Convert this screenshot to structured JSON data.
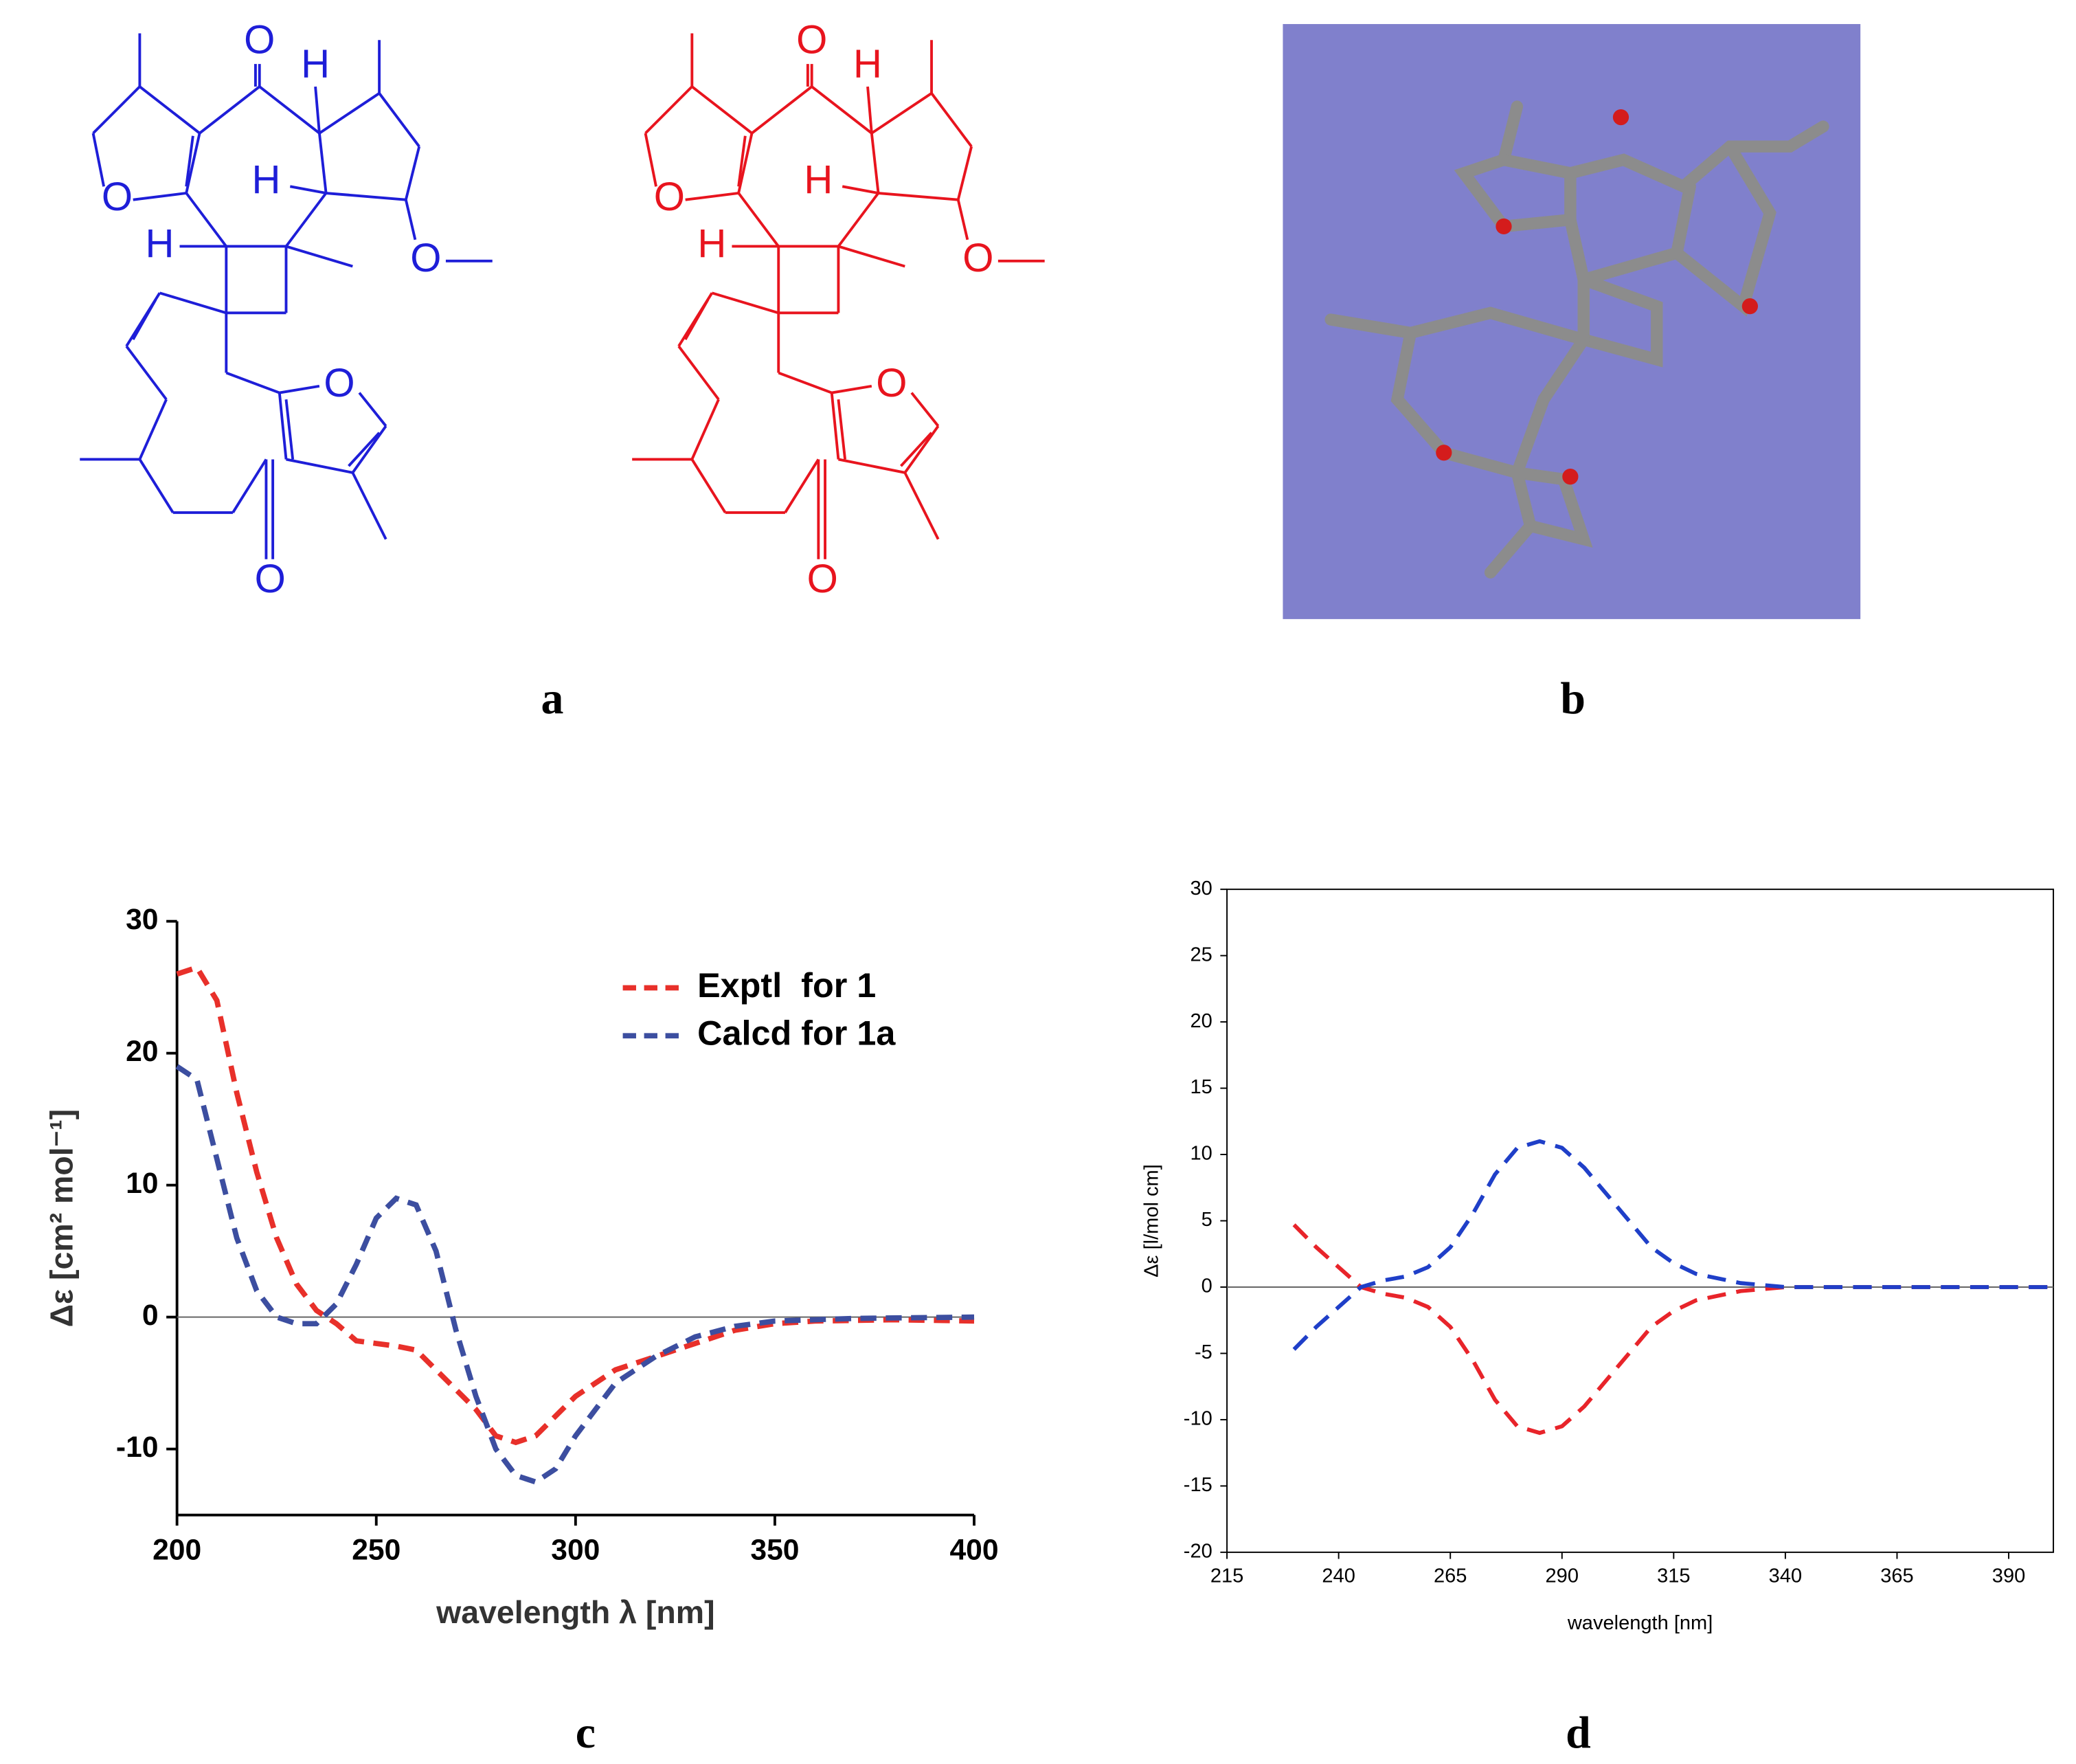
{
  "panels": [
    "a",
    "b",
    "c",
    "d"
  ],
  "structures": [
    {
      "color": "#1e1ed8",
      "atoms": [
        "O",
        "H",
        "H",
        "O",
        "H",
        "O",
        "O",
        "O"
      ]
    },
    {
      "color": "#e8141e",
      "atoms": [
        "O",
        "H",
        "H",
        "O",
        "H",
        "O",
        "O",
        "O"
      ]
    }
  ],
  "chart_data": [
    {
      "type": "line",
      "ylabel": "Δε [cm² mol⁻¹]",
      "xlabel": "wavelength λ [nm]",
      "xlim": [
        200,
        400
      ],
      "xticks": [
        200,
        250,
        300,
        350,
        400
      ],
      "ylim": [
        -15,
        30
      ],
      "yticks": [
        -10,
        0,
        10,
        20,
        30
      ],
      "zero_line": true,
      "legend": "upper right",
      "series": [
        {
          "name": "Exptl  for 1",
          "color": "#e8302a",
          "x": [
            200,
            205,
            210,
            215,
            220,
            225,
            230,
            235,
            240,
            245,
            250,
            255,
            260,
            265,
            270,
            275,
            280,
            285,
            290,
            295,
            300,
            305,
            310,
            315,
            320,
            330,
            340,
            350,
            360,
            380,
            400
          ],
          "values": [
            26,
            26.5,
            24,
            17,
            11,
            6,
            2.5,
            0.5,
            -0.5,
            -1.8,
            -2,
            -2.2,
            -2.5,
            -4,
            -5.5,
            -7,
            -9,
            -9.5,
            -9,
            -7.5,
            -6,
            -5,
            -4,
            -3.5,
            -3,
            -2,
            -1,
            -0.5,
            -0.3,
            -0.2,
            -0.3
          ]
        },
        {
          "name": "Calcd for 1a",
          "color": "#3c4ea0",
          "x": [
            200,
            205,
            210,
            215,
            220,
            225,
            230,
            235,
            240,
            245,
            250,
            255,
            260,
            265,
            270,
            275,
            280,
            285,
            290,
            295,
            300,
            305,
            310,
            320,
            330,
            340,
            350,
            370,
            400
          ],
          "values": [
            19,
            18,
            12,
            6,
            2,
            0,
            -0.5,
            -0.5,
            1,
            4,
            7.5,
            9,
            8.5,
            5,
            -1,
            -6,
            -10,
            -12,
            -12.5,
            -11.5,
            -9,
            -7,
            -5,
            -3,
            -1.5,
            -0.7,
            -0.3,
            -0.1,
            0
          ]
        }
      ]
    },
    {
      "type": "line",
      "ylabel": "Δε [l/mol cm]",
      "xlabel": "wavelength  [nm]",
      "xlim": [
        215,
        400
      ],
      "xticks": [
        215,
        240,
        265,
        290,
        315,
        340,
        365,
        390
      ],
      "ylim": [
        -20,
        30
      ],
      "yticks": [
        -20,
        -15,
        -10,
        -5,
        0,
        5,
        10,
        15,
        20,
        25,
        30
      ],
      "zero_line": true,
      "series": [
        {
          "color": "#e8242a",
          "x": [
            230,
            235,
            240,
            245,
            250,
            255,
            260,
            265,
            270,
            275,
            280,
            285,
            290,
            295,
            300,
            305,
            310,
            315,
            320,
            330,
            340,
            400
          ],
          "values": [
            4.7,
            3,
            1.5,
            0,
            -0.5,
            -0.8,
            -1.5,
            -3,
            -5.5,
            -8.5,
            -10.5,
            -11,
            -10.5,
            -9,
            -7,
            -5,
            -3,
            -1.8,
            -1,
            -0.3,
            0,
            0
          ]
        },
        {
          "color": "#1f3fc8",
          "x": [
            230,
            235,
            240,
            245,
            250,
            255,
            260,
            265,
            270,
            275,
            280,
            285,
            290,
            295,
            300,
            305,
            310,
            315,
            320,
            330,
            340,
            400
          ],
          "values": [
            -4.7,
            -3,
            -1.5,
            0,
            0.5,
            0.8,
            1.5,
            3,
            5.5,
            8.5,
            10.5,
            11,
            10.5,
            9,
            7,
            5,
            3,
            1.8,
            1,
            0.3,
            0,
            0
          ]
        }
      ]
    }
  ]
}
